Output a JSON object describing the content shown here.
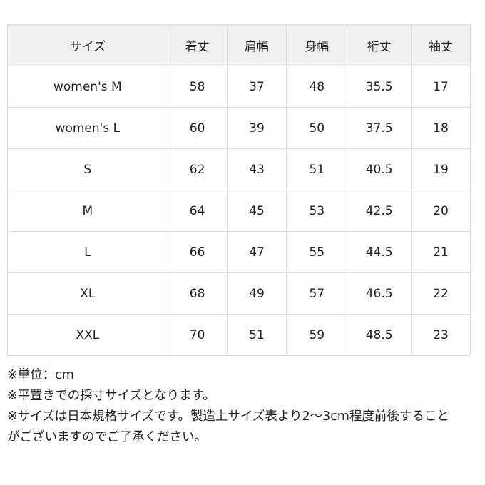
{
  "table": {
    "headers": [
      "サイズ",
      "着丈",
      "肩幅",
      "身幅",
      "裄丈",
      "袖丈"
    ],
    "rows": [
      [
        "women's M",
        "58",
        "37",
        "48",
        "35.5",
        "17"
      ],
      [
        "women's L",
        "60",
        "39",
        "50",
        "37.5",
        "18"
      ],
      [
        "S",
        "62",
        "43",
        "51",
        "40.5",
        "19"
      ],
      [
        "M",
        "64",
        "45",
        "53",
        "42.5",
        "20"
      ],
      [
        "L",
        "66",
        "47",
        "55",
        "44.5",
        "21"
      ],
      [
        "XL",
        "68",
        "49",
        "57",
        "46.5",
        "22"
      ],
      [
        "XXL",
        "70",
        "51",
        "59",
        "48.5",
        "23"
      ]
    ]
  },
  "notes": [
    "※単位：cm",
    "※平置きでの採寸サイズとなります。",
    "※サイズは日本規格サイズです。製造上サイズ表より2～3cm程度前後することがございますのでご了承ください。"
  ],
  "colors": {
    "header_bg": "#f0f0f0",
    "border": "#dcdcdc"
  }
}
